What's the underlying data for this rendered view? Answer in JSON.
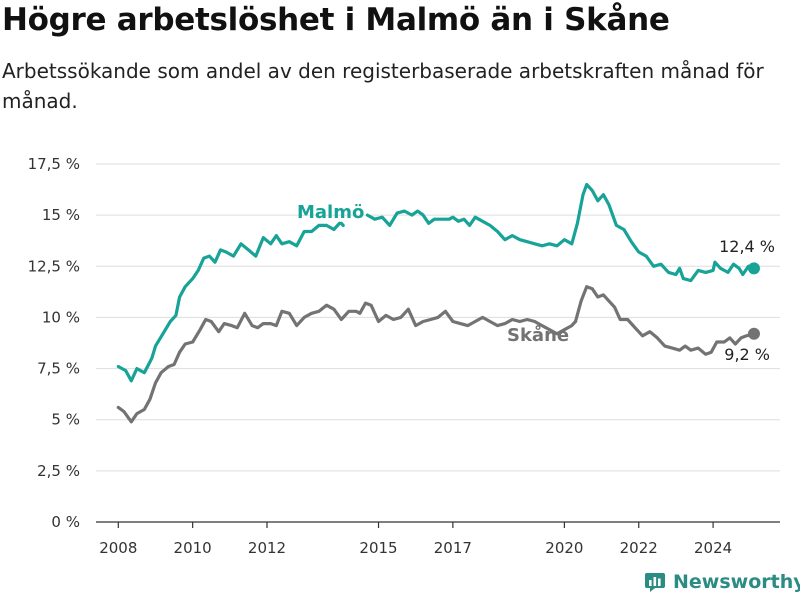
{
  "title": "Högre arbetslöshet i Malmö än i Skåne",
  "subtitle": "Arbetssökande som andel av den registerbaserade arbetskraften månad för månad.",
  "logo_text": "Newsworthy",
  "colors": {
    "malmo": "#17a397",
    "skane": "#737373",
    "grid": "#dddddd",
    "axis": "#333333",
    "logo": "#2a8c82"
  },
  "chart_data": {
    "type": "line",
    "title": "Högre arbetslöshet i Malmö än i Skåne",
    "xlabel": "",
    "ylabel": "",
    "xlim": [
      2007.4,
      2025.8
    ],
    "ylim": [
      0,
      17.5
    ],
    "grid": true,
    "legend": "none",
    "x_ticks": [
      2008,
      2010,
      2012,
      2015,
      2017,
      2020,
      2022,
      2024
    ],
    "y_ticks": [
      {
        "value": 0,
        "label": "0 %"
      },
      {
        "value": 2.5,
        "label": "2,5 %"
      },
      {
        "value": 5,
        "label": "5 %"
      },
      {
        "value": 7.5,
        "label": "7,5 %"
      },
      {
        "value": 10,
        "label": "10 %"
      },
      {
        "value": 12.5,
        "label": "12,5 %"
      },
      {
        "value": 15,
        "label": "15 %"
      },
      {
        "value": 17.5,
        "label": "17,5 %"
      }
    ],
    "series": [
      {
        "name": "Malmö",
        "color": "#17a397",
        "end_label": "12,4 %",
        "segments": [
          [
            [
              2008.0,
              7.6
            ],
            [
              2008.2,
              7.4
            ],
            [
              2008.35,
              6.9
            ],
            [
              2008.5,
              7.5
            ],
            [
              2008.7,
              7.3
            ],
            [
              2008.9,
              8.0
            ],
            [
              2009.0,
              8.6
            ],
            [
              2009.2,
              9.2
            ],
            [
              2009.4,
              9.8
            ],
            [
              2009.55,
              10.1
            ],
            [
              2009.65,
              11.0
            ],
            [
              2009.8,
              11.5
            ],
            [
              2010.0,
              11.9
            ],
            [
              2010.15,
              12.3
            ],
            [
              2010.3,
              12.9
            ],
            [
              2010.45,
              13.0
            ],
            [
              2010.6,
              12.7
            ],
            [
              2010.75,
              13.3
            ],
            [
              2010.9,
              13.2
            ],
            [
              2011.1,
              13.0
            ],
            [
              2011.3,
              13.6
            ],
            [
              2011.5,
              13.3
            ],
            [
              2011.7,
              13.0
            ],
            [
              2011.9,
              13.9
            ],
            [
              2012.1,
              13.6
            ],
            [
              2012.25,
              14.0
            ],
            [
              2012.4,
              13.6
            ],
            [
              2012.6,
              13.7
            ],
            [
              2012.8,
              13.5
            ],
            [
              2013.0,
              14.2
            ],
            [
              2013.2,
              14.2
            ],
            [
              2013.4,
              14.5
            ],
            [
              2013.6,
              14.5
            ],
            [
              2013.8,
              14.3
            ],
            [
              2013.95,
              14.6
            ]
          ],
          [
            [
              2014.0,
              14.6
            ],
            [
              2014.05,
              14.5
            ]
          ],
          [
            [
              2014.7,
              15.0
            ],
            [
              2014.9,
              14.8
            ],
            [
              2015.1,
              14.9
            ],
            [
              2015.3,
              14.5
            ],
            [
              2015.5,
              15.1
            ],
            [
              2015.7,
              15.2
            ],
            [
              2015.9,
              15.0
            ],
            [
              2016.05,
              15.2
            ],
            [
              2016.2,
              15.0
            ],
            [
              2016.35,
              14.6
            ],
            [
              2016.5,
              14.8
            ],
            [
              2016.7,
              14.8
            ],
            [
              2016.9,
              14.8
            ],
            [
              2017.0,
              14.9
            ],
            [
              2017.15,
              14.7
            ],
            [
              2017.3,
              14.8
            ],
            [
              2017.45,
              14.5
            ],
            [
              2017.6,
              14.9
            ],
            [
              2017.8,
              14.7
            ],
            [
              2018.0,
              14.5
            ],
            [
              2018.2,
              14.2
            ],
            [
              2018.4,
              13.8
            ],
            [
              2018.6,
              14.0
            ],
            [
              2018.8,
              13.8
            ],
            [
              2019.0,
              13.7
            ],
            [
              2019.2,
              13.6
            ],
            [
              2019.4,
              13.5
            ],
            [
              2019.6,
              13.6
            ],
            [
              2019.8,
              13.5
            ],
            [
              2020.0,
              13.8
            ],
            [
              2020.2,
              13.6
            ],
            [
              2020.35,
              14.6
            ],
            [
              2020.5,
              16.0
            ],
            [
              2020.6,
              16.5
            ],
            [
              2020.75,
              16.2
            ],
            [
              2020.9,
              15.7
            ],
            [
              2021.05,
              16.0
            ],
            [
              2021.2,
              15.5
            ],
            [
              2021.4,
              14.5
            ],
            [
              2021.6,
              14.3
            ],
            [
              2021.8,
              13.7
            ],
            [
              2022.0,
              13.2
            ],
            [
              2022.2,
              13.0
            ],
            [
              2022.4,
              12.5
            ],
            [
              2022.6,
              12.6
            ],
            [
              2022.8,
              12.2
            ],
            [
              2023.0,
              12.1
            ],
            [
              2023.1,
              12.4
            ],
            [
              2023.2,
              11.9
            ],
            [
              2023.4,
              11.8
            ],
            [
              2023.6,
              12.3
            ],
            [
              2023.8,
              12.2
            ],
            [
              2024.0,
              12.3
            ],
            [
              2024.05,
              12.7
            ],
            [
              2024.2,
              12.4
            ],
            [
              2024.4,
              12.2
            ],
            [
              2024.55,
              12.6
            ],
            [
              2024.7,
              12.4
            ],
            [
              2024.8,
              12.1
            ],
            [
              2024.95,
              12.5
            ],
            [
              2025.1,
              12.4
            ]
          ]
        ]
      },
      {
        "name": "Skåne",
        "color": "#737373",
        "end_label": "9,2 %",
        "segments": [
          [
            [
              2008.0,
              5.6
            ],
            [
              2008.15,
              5.4
            ],
            [
              2008.35,
              4.9
            ],
            [
              2008.5,
              5.3
            ],
            [
              2008.7,
              5.5
            ],
            [
              2008.85,
              6.0
            ],
            [
              2009.0,
              6.8
            ],
            [
              2009.15,
              7.3
            ],
            [
              2009.35,
              7.6
            ],
            [
              2009.5,
              7.7
            ],
            [
              2009.65,
              8.3
            ],
            [
              2009.8,
              8.7
            ],
            [
              2010.0,
              8.8
            ],
            [
              2010.2,
              9.4
            ],
            [
              2010.35,
              9.9
            ],
            [
              2010.5,
              9.8
            ],
            [
              2010.7,
              9.3
            ],
            [
              2010.85,
              9.7
            ],
            [
              2011.05,
              9.6
            ],
            [
              2011.2,
              9.5
            ],
            [
              2011.4,
              10.2
            ],
            [
              2011.6,
              9.6
            ],
            [
              2011.75,
              9.5
            ],
            [
              2011.9,
              9.7
            ],
            [
              2012.1,
              9.7
            ],
            [
              2012.25,
              9.6
            ],
            [
              2012.4,
              10.3
            ],
            [
              2012.6,
              10.2
            ],
            [
              2012.8,
              9.6
            ],
            [
              2013.0,
              10.0
            ],
            [
              2013.2,
              10.2
            ],
            [
              2013.4,
              10.3
            ],
            [
              2013.6,
              10.6
            ],
            [
              2013.8,
              10.4
            ],
            [
              2014.0,
              9.9
            ],
            [
              2014.2,
              10.3
            ],
            [
              2014.4,
              10.3
            ],
            [
              2014.5,
              10.2
            ],
            [
              2014.65,
              10.7
            ],
            [
              2014.8,
              10.6
            ],
            [
              2015.0,
              9.8
            ],
            [
              2015.2,
              10.1
            ],
            [
              2015.4,
              9.9
            ],
            [
              2015.6,
              10.0
            ],
            [
              2015.8,
              10.4
            ],
            [
              2016.0,
              9.6
            ],
            [
              2016.2,
              9.8
            ],
            [
              2016.4,
              9.9
            ],
            [
              2016.6,
              10.0
            ],
            [
              2016.8,
              10.3
            ],
            [
              2017.0,
              9.8
            ],
            [
              2017.2,
              9.7
            ],
            [
              2017.4,
              9.6
            ],
            [
              2017.6,
              9.8
            ],
            [
              2017.8,
              10.0
            ],
            [
              2018.0,
              9.8
            ],
            [
              2018.2,
              9.6
            ],
            [
              2018.4,
              9.7
            ],
            [
              2018.6,
              9.9
            ],
            [
              2018.8,
              9.8
            ],
            [
              2019.0,
              9.9
            ],
            [
              2019.2,
              9.8
            ],
            [
              2019.4,
              9.6
            ],
            [
              2019.6,
              9.4
            ],
            [
              2019.8,
              9.2
            ],
            [
              2020.0,
              9.4
            ],
            [
              2020.2,
              9.6
            ],
            [
              2020.3,
              9.8
            ]
          ],
          [
            [
              2020.3,
              9.8
            ],
            [
              2020.45,
              10.8
            ],
            [
              2020.6,
              11.5
            ],
            [
              2020.75,
              11.4
            ],
            [
              2020.9,
              11.0
            ],
            [
              2021.05,
              11.1
            ],
            [
              2021.2,
              10.8
            ],
            [
              2021.35,
              10.5
            ],
            [
              2021.5,
              9.9
            ],
            [
              2021.7,
              9.9
            ],
            [
              2021.9,
              9.5
            ],
            [
              2022.1,
              9.1
            ],
            [
              2022.3,
              9.3
            ],
            [
              2022.5,
              9.0
            ],
            [
              2022.7,
              8.6
            ],
            [
              2022.9,
              8.5
            ],
            [
              2023.1,
              8.4
            ],
            [
              2023.25,
              8.6
            ],
            [
              2023.4,
              8.4
            ],
            [
              2023.6,
              8.5
            ],
            [
              2023.8,
              8.2
            ],
            [
              2023.95,
              8.3
            ],
            [
              2024.1,
              8.8
            ],
            [
              2024.3,
              8.8
            ],
            [
              2024.45,
              9.0
            ],
            [
              2024.6,
              8.7
            ],
            [
              2024.75,
              9.0
            ],
            [
              2024.9,
              9.1
            ],
            [
              2025.1,
              9.2
            ]
          ]
        ]
      }
    ]
  }
}
